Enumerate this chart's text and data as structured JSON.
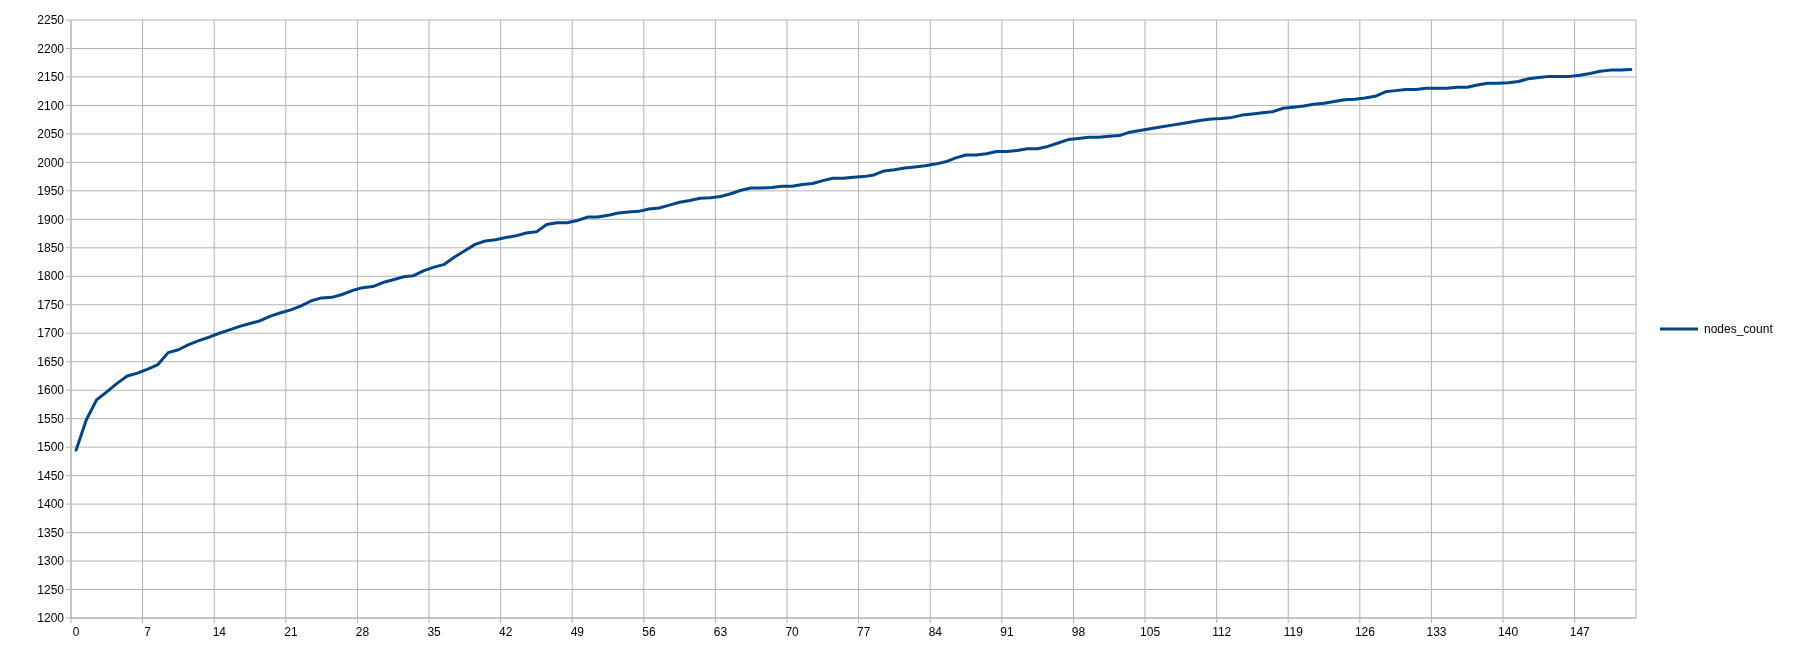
{
  "chart_data": {
    "type": "line",
    "categories": [
      "0",
      null,
      null,
      null,
      null,
      null,
      null,
      "7",
      null,
      null,
      null,
      null,
      null,
      null,
      "14",
      null,
      null,
      null,
      null,
      null,
      null,
      "21",
      null,
      null,
      null,
      null,
      null,
      null,
      "28",
      null,
      null,
      null,
      null,
      null,
      null,
      "35",
      null,
      null,
      null,
      null,
      null,
      null,
      "42",
      null,
      null,
      null,
      null,
      null,
      null,
      "49",
      null,
      null,
      null,
      null,
      null,
      null,
      "56",
      null,
      null,
      null,
      null,
      null,
      null,
      "63",
      null,
      null,
      null,
      null,
      null,
      null,
      "70",
      null,
      null,
      null,
      null,
      null,
      null,
      "77",
      null,
      null,
      null,
      null,
      null,
      null,
      "84",
      null,
      null,
      null,
      null,
      null,
      null,
      "91",
      null,
      null,
      null,
      null,
      null,
      null,
      "98",
      null,
      null,
      null,
      null,
      null,
      null,
      "105",
      null,
      null,
      null,
      null,
      null,
      null,
      "112",
      null,
      null,
      null,
      null,
      null,
      null,
      "119",
      null,
      null,
      null,
      null,
      null,
      null,
      "126",
      null,
      null,
      null,
      null,
      null,
      null,
      "133",
      null,
      null,
      null,
      null,
      null,
      null,
      "140",
      null,
      null,
      null,
      null,
      null,
      null,
      "147",
      null,
      null,
      null,
      null,
      null
    ],
    "series": [
      {
        "name": "nodes_count",
        "color": "#004586",
        "values": [
          1495,
          1548,
          1583,
          1597,
          1612,
          1625,
          1630,
          1637,
          1645,
          1666,
          1671,
          1680,
          1687,
          1693,
          1700,
          1706,
          1712,
          1717,
          1722,
          1730,
          1736,
          1741,
          1748,
          1757,
          1762,
          1763,
          1768,
          1775,
          1780,
          1782,
          1789,
          1794,
          1799,
          1801,
          1810,
          1816,
          1821,
          1834,
          1845,
          1856,
          1862,
          1864,
          1868,
          1871,
          1876,
          1878,
          1891,
          1894,
          1894,
          1898,
          1904,
          1904,
          1907,
          1911,
          1913,
          1914,
          1918,
          1920,
          1925,
          1930,
          1933,
          1937,
          1938,
          1940,
          1945,
          1951,
          1955,
          1955,
          1956,
          1958,
          1958,
          1961,
          1963,
          1968,
          1972,
          1972,
          1974,
          1975,
          1978,
          1985,
          1987,
          1990,
          1992,
          1994,
          1997,
          2001,
          2008,
          2013,
          2013,
          2015,
          2019,
          2019,
          2021,
          2024,
          2024,
          2028,
          2034,
          2040,
          2042,
          2044,
          2044,
          2046,
          2047,
          2053,
          2056,
          2059,
          2062,
          2065,
          2068,
          2071,
          2074,
          2076,
          2077,
          2079,
          2083,
          2085,
          2087,
          2089,
          2095,
          2097,
          2099,
          2102,
          2104,
          2107,
          2110,
          2111,
          2113,
          2116,
          2124,
          2126,
          2128,
          2128,
          2130,
          2130,
          2130,
          2132,
          2132,
          2136,
          2139,
          2139,
          2140,
          2142,
          2147,
          2149,
          2151,
          2151,
          2151,
          2153,
          2156,
          2160,
          2162,
          2162,
          2163
        ]
      }
    ],
    "ylim": [
      1200,
      2250
    ],
    "yticks": [
      1200,
      1250,
      1300,
      1350,
      1400,
      1450,
      1500,
      1550,
      1600,
      1650,
      1700,
      1750,
      1800,
      1850,
      1900,
      1950,
      2000,
      2050,
      2100,
      2150,
      2200,
      2250
    ],
    "grid": true,
    "legend": "right",
    "marker": "none",
    "line_style": "solid"
  }
}
